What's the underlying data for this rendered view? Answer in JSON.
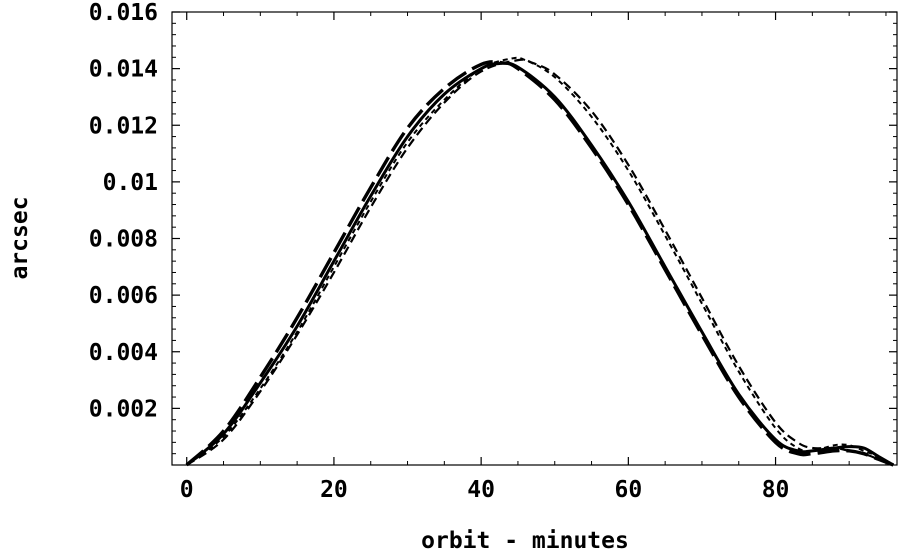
{
  "chart_data": {
    "type": "line",
    "title": "",
    "xlabel": "orbit - minutes",
    "ylabel": "arcsec",
    "xlim": [
      -2,
      96.5
    ],
    "ylim": [
      0,
      0.016
    ],
    "x_ticks": [
      0,
      20,
      40,
      60,
      80
    ],
    "x_tick_labels": [
      "0",
      "20",
      "40",
      "60",
      "80"
    ],
    "y_ticks": [
      0.002,
      0.004,
      0.006,
      0.008,
      0.01,
      0.012,
      0.014,
      0.016
    ],
    "y_tick_labels": [
      "0.002",
      "0.004",
      "0.006",
      "0.008",
      "0.01",
      "0.012",
      "0.014",
      "0.016"
    ],
    "grid": false,
    "legend": "none",
    "series": [
      {
        "style": "solid",
        "x": [
          0,
          5,
          10,
          15,
          20,
          25,
          30,
          35,
          40,
          42.5,
          45,
          50,
          55,
          60,
          65,
          70,
          75,
          80,
          83,
          85,
          88,
          90,
          92,
          94,
          96
        ],
        "y": [
          0,
          0.0011,
          0.0029,
          0.0049,
          0.0072,
          0.0095,
          0.0116,
          0.0131,
          0.014,
          0.01418,
          0.01405,
          0.013,
          0.0113,
          0.0093,
          0.007,
          0.0047,
          0.0025,
          0.0009,
          0.0005,
          0.0005,
          0.0006,
          0.00065,
          0.0006,
          0.0003,
          0
        ]
      },
      {
        "style": "long-dash",
        "x": [
          0,
          5,
          10,
          15,
          20,
          25,
          30,
          35,
          40,
          43,
          45,
          50,
          55,
          60,
          65,
          70,
          75,
          80,
          83,
          85,
          88,
          90,
          92,
          94,
          96
        ],
        "y": [
          0,
          0.0012,
          0.0031,
          0.0052,
          0.0075,
          0.0098,
          0.0119,
          0.0133,
          0.01415,
          0.0142,
          0.014,
          0.0129,
          0.0112,
          0.0092,
          0.0069,
          0.0046,
          0.0024,
          0.0008,
          0.0004,
          0.0004,
          0.0005,
          0.0005,
          0.0004,
          0.0002,
          0
        ]
      },
      {
        "style": "dashed",
        "x": [
          0,
          5,
          10,
          15,
          20,
          25,
          30,
          35,
          40,
          45,
          47,
          50,
          55,
          60,
          65,
          70,
          75,
          80,
          83,
          85,
          88,
          90,
          92,
          94,
          96
        ],
        "y": [
          0,
          0.0009,
          0.0026,
          0.0046,
          0.0068,
          0.0091,
          0.0112,
          0.0128,
          0.0139,
          0.0143,
          0.0142,
          0.0138,
          0.0125,
          0.0106,
          0.0083,
          0.0059,
          0.0035,
          0.0015,
          0.0008,
          0.0006,
          0.0006,
          0.0005,
          0.0004,
          0.0002,
          0
        ]
      },
      {
        "style": "short-dash",
        "x": [
          0,
          5,
          10,
          15,
          20,
          25,
          30,
          35,
          40,
          44,
          46,
          50,
          55,
          60,
          65,
          70,
          75,
          80,
          83,
          85,
          88,
          90,
          92,
          94,
          96
        ],
        "y": [
          0,
          0.001,
          0.0027,
          0.0047,
          0.007,
          0.0093,
          0.0114,
          0.0129,
          0.014,
          0.01435,
          0.0143,
          0.0137,
          0.0123,
          0.0104,
          0.0081,
          0.0057,
          0.0033,
          0.0013,
          0.0006,
          0.0005,
          0.0007,
          0.0007,
          0.0005,
          0.0003,
          0
        ]
      }
    ]
  }
}
